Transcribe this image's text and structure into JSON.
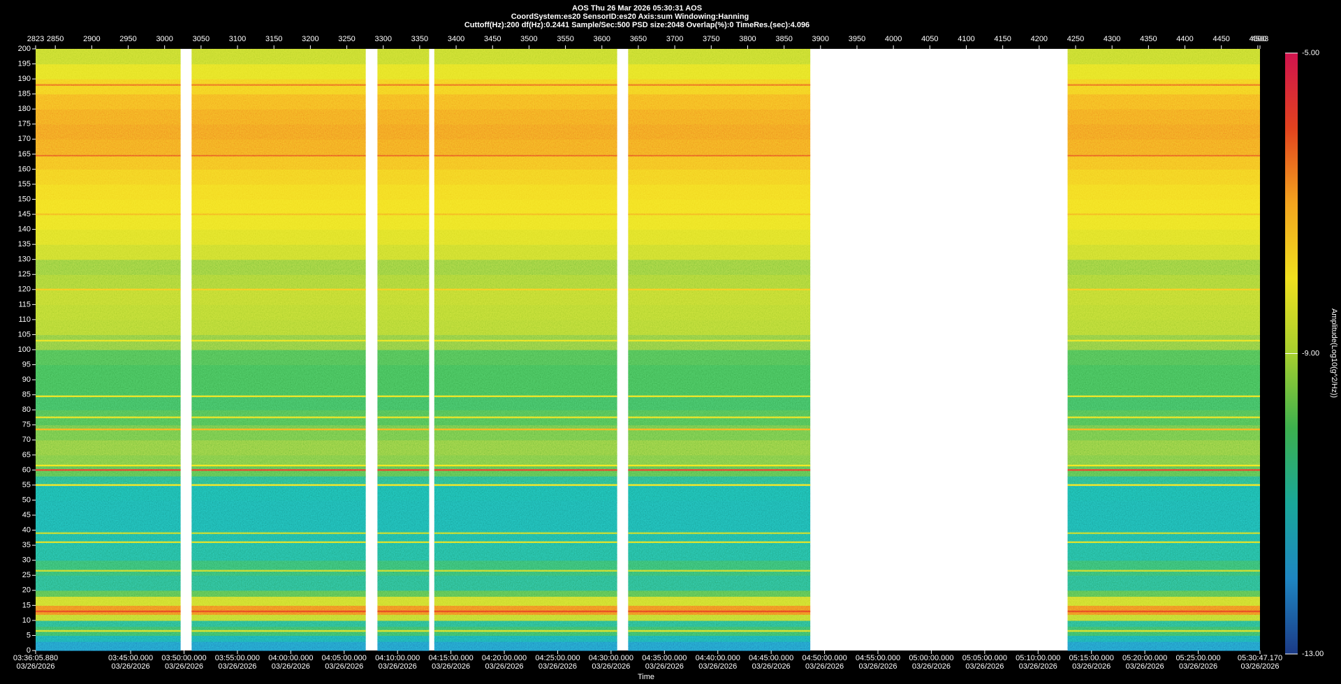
{
  "chart_data": {
    "type": "spectrogram",
    "title": "AOS  Thu 26 Mar 2026 05:30:31  AOS",
    "subtitles": [
      "CoordSystem:es20    SensorID:es20     Axis:sum     Windowing:Hanning",
      "Cuttoff(Hz):200      df(Hz):0.2441      Sample/Sec:500      PSD size:2048      Overlap(%):0      TimeRes.(sec):4.096"
    ],
    "xlabel": "Time",
    "x_date": "03/26/2026",
    "xlim": [
      12965.88,
      19847.17
    ],
    "xticks": [
      {
        "value": 12965.88,
        "label": "03:36:05.880"
      },
      {
        "value": 13500,
        "label": "03:45:00.000"
      },
      {
        "value": 13800,
        "label": "03:50:00.000"
      },
      {
        "value": 14100,
        "label": "03:55:00.000"
      },
      {
        "value": 14400,
        "label": "04:00:00.000"
      },
      {
        "value": 14700,
        "label": "04:05:00.000"
      },
      {
        "value": 15000,
        "label": "04:10:00.000"
      },
      {
        "value": 15300,
        "label": "04:15:00.000"
      },
      {
        "value": 15600,
        "label": "04:20:00.000"
      },
      {
        "value": 15900,
        "label": "04:25:00.000"
      },
      {
        "value": 16200,
        "label": "04:30:00.000"
      },
      {
        "value": 16500,
        "label": "04:35:00.000"
      },
      {
        "value": 16800,
        "label": "04:40:00.000"
      },
      {
        "value": 17100,
        "label": "04:45:00.000"
      },
      {
        "value": 17400,
        "label": "04:50:00.000"
      },
      {
        "value": 17700,
        "label": "04:55:00.000"
      },
      {
        "value": 18000,
        "label": "05:00:00.000"
      },
      {
        "value": 18300,
        "label": "05:05:00.000"
      },
      {
        "value": 18600,
        "label": "05:10:00.000"
      },
      {
        "value": 18900,
        "label": "05:15:00.000"
      },
      {
        "value": 19200,
        "label": "05:20:00.000"
      },
      {
        "value": 19500,
        "label": "05:25:00.000"
      },
      {
        "value": 19847.17,
        "label": "05:30:47.170"
      }
    ],
    "x2lim": [
      2823,
      4503
    ],
    "x2ticks": [
      2823,
      2850,
      2900,
      2950,
      3000,
      3050,
      3100,
      3150,
      3200,
      3250,
      3300,
      3350,
      3400,
      3450,
      3500,
      3550,
      3600,
      3650,
      3700,
      3750,
      3800,
      3850,
      3900,
      3950,
      4000,
      4050,
      4100,
      4150,
      4200,
      4250,
      4300,
      4350,
      4400,
      4450,
      4500,
      4503
    ],
    "ylim": [
      0,
      200
    ],
    "yticks": [
      0,
      5,
      10,
      15,
      20,
      25,
      30,
      35,
      40,
      45,
      50,
      55,
      60,
      65,
      70,
      75,
      80,
      85,
      90,
      95,
      100,
      105,
      110,
      115,
      120,
      125,
      130,
      135,
      140,
      145,
      150,
      155,
      160,
      165,
      170,
      175,
      180,
      185,
      190,
      195,
      200
    ],
    "segments": [
      [
        2823,
        3022
      ],
      [
        3037,
        3276
      ],
      [
        3292,
        3363
      ],
      [
        3370,
        3621
      ],
      [
        3636,
        3886
      ],
      [
        4239,
        4503
      ]
    ],
    "bands": {
      "edges": [
        0,
        3,
        5,
        8,
        10,
        12,
        15,
        18,
        20,
        25,
        30,
        35,
        40,
        45,
        50,
        55,
        58,
        62,
        65,
        70,
        75,
        80,
        85,
        90,
        95,
        100,
        105,
        110,
        115,
        120,
        125,
        130,
        135,
        140,
        145,
        150,
        155,
        160,
        165,
        170,
        175,
        180,
        185,
        190,
        195,
        200
      ],
      "amplitude": [
        -11.9,
        -11.2,
        -10.2,
        -10.6,
        -8.8,
        -6.6,
        -8.6,
        -9.8,
        -10.6,
        -10.3,
        -10.8,
        -10.9,
        -11.1,
        -11.1,
        -11.0,
        -10.6,
        -9.8,
        -9.5,
        -9.4,
        -9.6,
        -9.9,
        -10.1,
        -10.0,
        -10.0,
        -9.9,
        -9.4,
        -9.0,
        -8.9,
        -8.8,
        -9.1,
        -9.3,
        -8.6,
        -8.3,
        -8.1,
        -7.9,
        -7.8,
        -7.6,
        -7.3,
        -6.9,
        -6.8,
        -6.9,
        -7.1,
        -7.6,
        -8.2,
        -8.7
      ]
    },
    "lines": {
      "freq": [
        6.5,
        13,
        26.5,
        36,
        39,
        55,
        60,
        61.5,
        73.5,
        77.5,
        84.5,
        103,
        120,
        145,
        164.5,
        188
      ],
      "amplitude": [
        -8.5,
        -6.0,
        -8.8,
        -8.5,
        -8.9,
        -8.0,
        -5.8,
        -8.0,
        -7.0,
        -8.3,
        -8.2,
        -8.2,
        -7.5,
        -7.2,
        -6.3,
        -6.4
      ]
    },
    "colorbar": {
      "label": "Amplitude(Log10(g^2/Hz))",
      "lim": [
        -13,
        -5
      ],
      "ticks": [
        {
          "value": -5,
          "label": "-5.00"
        },
        {
          "value": -9,
          "label": "-9.00"
        },
        {
          "value": -13,
          "label": "-13.00"
        }
      ],
      "colors": [
        "#1b3a86",
        "#1e86c2",
        "#19a89a",
        "#3cb04e",
        "#a6cf2e",
        "#f0e01e",
        "#f3a41e",
        "#e2421e",
        "#d0134e"
      ]
    }
  }
}
